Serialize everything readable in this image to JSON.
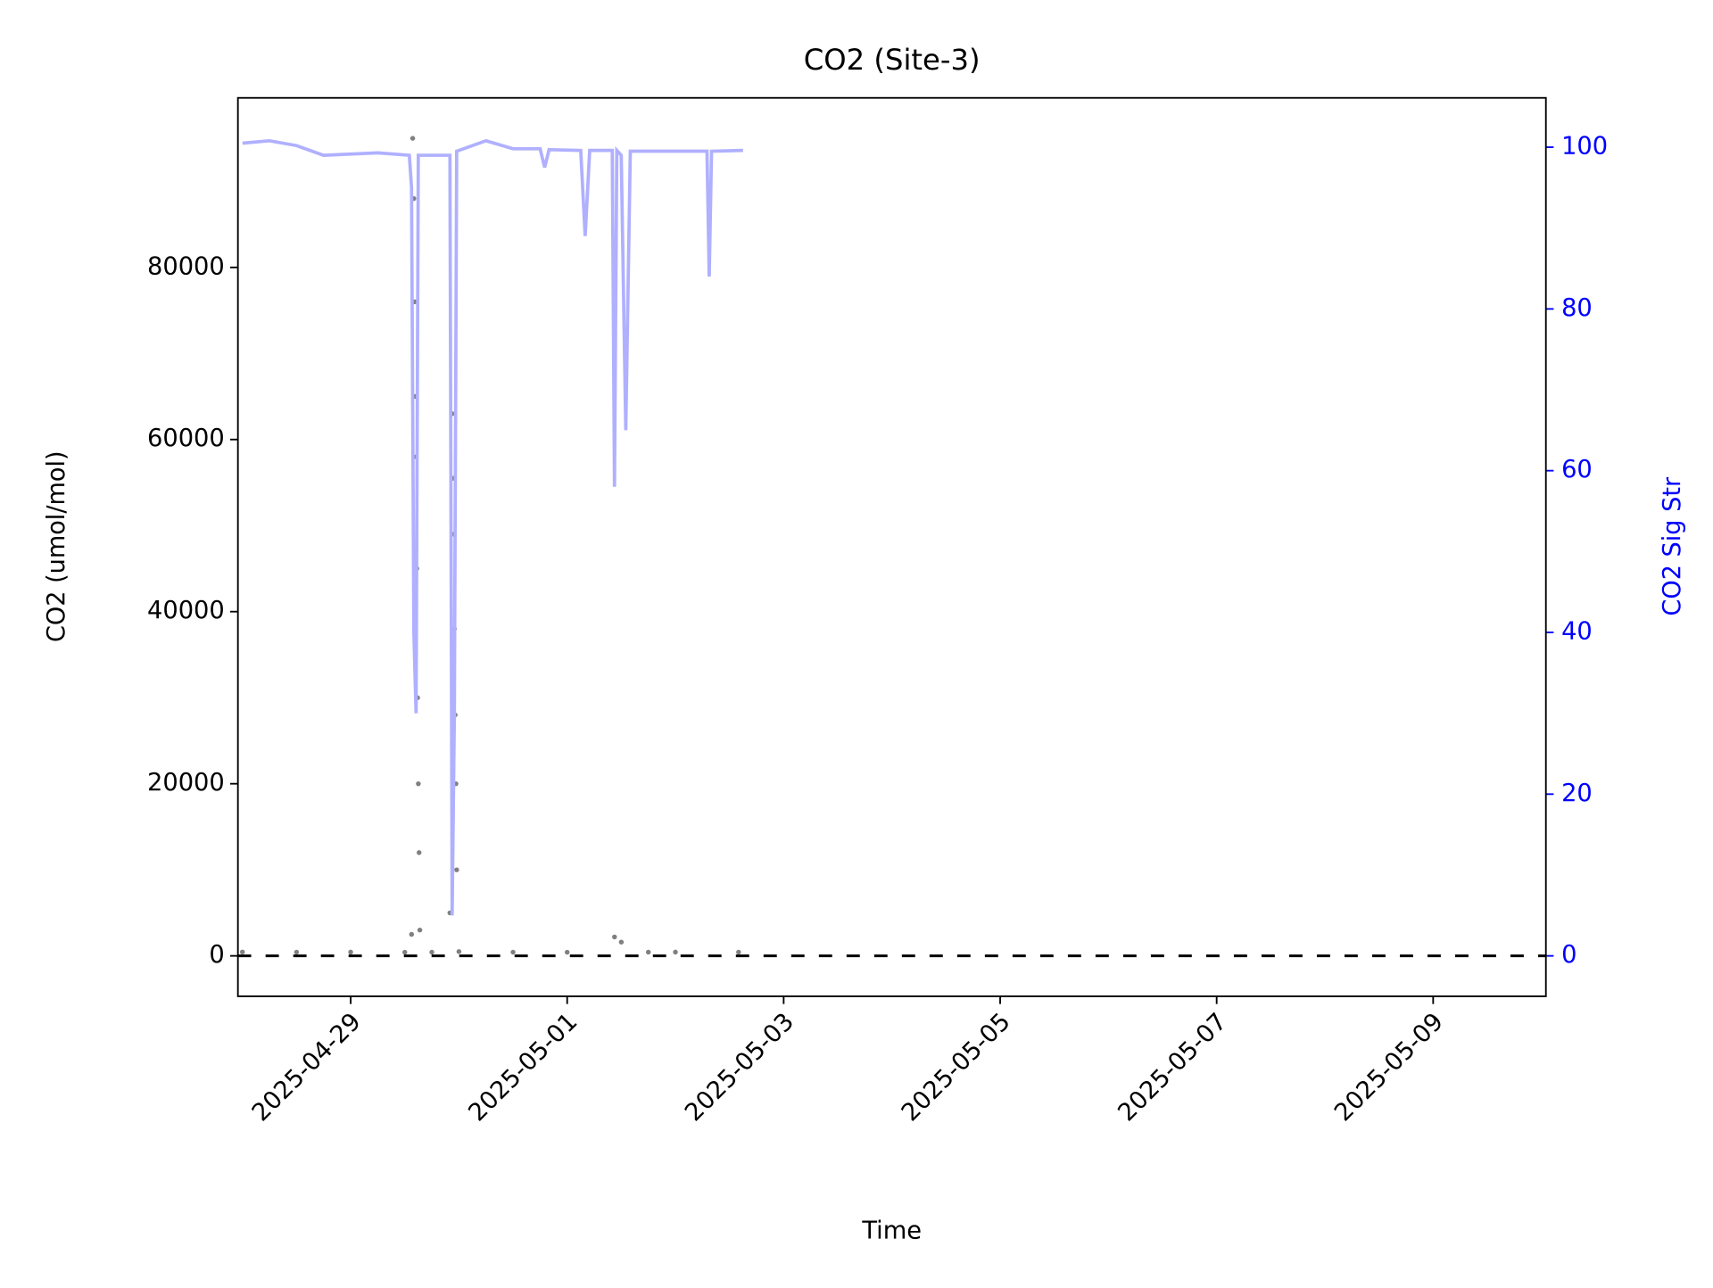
{
  "chart_data": {
    "type": "scatter",
    "title": "CO2 (Site-3)",
    "xlabel": "Time",
    "ylabel": "CO2 (umol/mol)",
    "y2label": "CO2 Sig Str",
    "y2color": "#0000ff",
    "xlim": [
      "2025-04-27T23:00",
      "2025-05-10T01:00"
    ],
    "xticks": [
      "2025-04-29",
      "2025-05-01",
      "2025-05-03",
      "2025-05-05",
      "2025-05-07",
      "2025-05-09"
    ],
    "ylim": [
      -4700,
      99700
    ],
    "yticks": [
      0,
      20000,
      40000,
      60000,
      80000
    ],
    "y2lim": [
      -5,
      106.1
    ],
    "y2ticks": [
      0,
      20,
      40,
      60,
      80,
      100
    ],
    "hline": 0,
    "series": [
      {
        "type": "scatter",
        "color": "#808080",
        "x": [
          "2025-04-28T00:00",
          "2025-04-28T12:00",
          "2025-04-29T00:00",
          "2025-04-29T12:00",
          "2025-04-29T13:30",
          "2025-04-29T13:45",
          "2025-04-29T14:00",
          "2025-04-29T14:10",
          "2025-04-29T14:20",
          "2025-04-29T14:30",
          "2025-04-29T14:40",
          "2025-04-29T14:50",
          "2025-04-29T15:00",
          "2025-04-29T15:10",
          "2025-04-29T15:20",
          "2025-04-29T18:00",
          "2025-04-29T22:00",
          "2025-04-29T22:30",
          "2025-04-29T22:40",
          "2025-04-29T22:50",
          "2025-04-29T23:00",
          "2025-04-29T23:10",
          "2025-04-29T23:20",
          "2025-04-29T23:30",
          "2025-04-30T00:00",
          "2025-04-30T12:00",
          "2025-05-01T00:00",
          "2025-05-01T10:30",
          "2025-05-01T12:00",
          "2025-05-01T18:00",
          "2025-05-02T00:00",
          "2025-05-02T14:00"
        ],
        "values": [
          450,
          430,
          440,
          420,
          2500,
          95000,
          88000,
          76000,
          65000,
          58000,
          45000,
          30000,
          20000,
          12000,
          3000,
          430,
          5000,
          63000,
          55500,
          49000,
          38000,
          28000,
          20000,
          10000,
          500,
          430,
          420,
          2200,
          1600,
          430,
          440,
          430
        ]
      },
      {
        "type": "line",
        "axis": "y2",
        "color": "#b0b0ff",
        "x": [
          "2025-04-28T00:00",
          "2025-04-28T06:00",
          "2025-04-28T12:00",
          "2025-04-28T18:00",
          "2025-04-29T06:00",
          "2025-04-29T13:00",
          "2025-04-29T13:30",
          "2025-04-29T14:00",
          "2025-04-29T14:30",
          "2025-04-29T15:00",
          "2025-04-29T22:00",
          "2025-04-29T22:30",
          "2025-04-29T23:00",
          "2025-04-29T23:30",
          "2025-04-30T06:00",
          "2025-04-30T12:00",
          "2025-04-30T18:00",
          "2025-04-30T19:00",
          "2025-04-30T20:00",
          "2025-05-01T03:00",
          "2025-05-01T04:00",
          "2025-05-01T05:00",
          "2025-05-01T10:00",
          "2025-05-01T10:30",
          "2025-05-01T11:00",
          "2025-05-01T12:00",
          "2025-05-01T13:00",
          "2025-05-01T14:00",
          "2025-05-02T07:00",
          "2025-05-02T07:30",
          "2025-05-02T08:00",
          "2025-05-02T15:00"
        ],
        "values": [
          100.5,
          100.8,
          100.2,
          99.0,
          99.3,
          99.0,
          95,
          40,
          30,
          99,
          99,
          5,
          30,
          99.5,
          100.8,
          99.8,
          99.8,
          97.5,
          99.7,
          99.6,
          89,
          99.6,
          99.6,
          58,
          99.6,
          99,
          65,
          99.5,
          99.5,
          84,
          99.5,
          99.6
        ]
      }
    ]
  }
}
